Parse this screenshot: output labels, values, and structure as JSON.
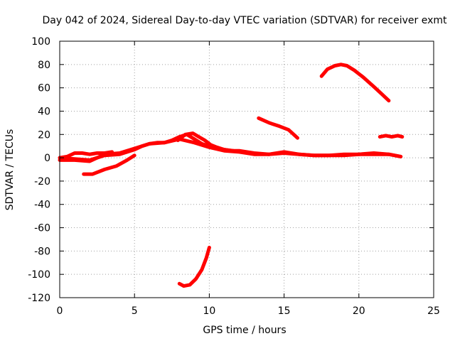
{
  "chart_data": {
    "type": "line",
    "title": "Day 042 of 2024, Sidereal Day-to-day VTEC variation (SDTVAR) for receiver exmt",
    "xlabel": "GPS time / hours",
    "ylabel": "SDTVAR / TECUs",
    "xlim": [
      0,
      25
    ],
    "ylim": [
      -120,
      100
    ],
    "xticks": [
      0,
      5,
      10,
      15,
      20,
      25
    ],
    "yticks": [
      -120,
      -100,
      -80,
      -60,
      -40,
      -20,
      0,
      20,
      40,
      60,
      80,
      100
    ],
    "grid": true,
    "color": "#ff0000",
    "series": [
      {
        "name": "main-band-upper",
        "x": [
          0,
          1,
          2,
          3,
          4,
          5,
          5.5,
          6,
          6.5,
          7,
          7.5,
          8,
          8.5,
          9,
          9.5,
          10,
          10.5,
          11,
          11.5,
          12,
          13,
          14,
          15,
          16,
          17,
          18,
          19,
          20,
          21,
          22,
          22.8
        ],
        "y": [
          0,
          -1,
          -2,
          2,
          3,
          7,
          10,
          12,
          13,
          13,
          15,
          18,
          20,
          16,
          12,
          10,
          8,
          7,
          6,
          6,
          4,
          3,
          4,
          3,
          2,
          2,
          2,
          3,
          3,
          3,
          1
        ]
      },
      {
        "name": "main-band-lower",
        "x": [
          0,
          1,
          2,
          2.5,
          3,
          4,
          5,
          6,
          7,
          8,
          9,
          10,
          11,
          12,
          13,
          14,
          15,
          16,
          17,
          18,
          19,
          20,
          21,
          22,
          22.8
        ],
        "y": [
          -2,
          -2,
          -3,
          0,
          3,
          4,
          8,
          12,
          13,
          16,
          13,
          9,
          6,
          5,
          3,
          3,
          5,
          3,
          2,
          2,
          3,
          3,
          4,
          3,
          1
        ]
      },
      {
        "name": "early-branch",
        "x": [
          0,
          0.5,
          1,
          1.5,
          2,
          2.5,
          3,
          3.5
        ],
        "y": [
          0,
          1,
          4,
          4,
          3,
          4,
          4,
          5
        ]
      },
      {
        "name": "low-branch",
        "x": [
          1.6,
          2.2,
          3,
          3.8,
          4.5,
          5
        ],
        "y": [
          -14,
          -14,
          -10,
          -7,
          -2,
          2
        ]
      },
      {
        "name": "evening-hump",
        "x": [
          7.9,
          8.4,
          8.9,
          9.3,
          9.7,
          10.1,
          10.5,
          11,
          11.6
        ],
        "y": [
          15,
          20,
          21,
          18,
          15,
          11,
          9,
          7,
          6
        ]
      },
      {
        "name": "dip-arc",
        "x": [
          8,
          8.3,
          8.7,
          9.1,
          9.5,
          9.8,
          10
        ],
        "y": [
          -108,
          -110,
          -109,
          -104,
          -96,
          -86,
          -77
        ]
      },
      {
        "name": "mid-arc",
        "x": [
          13.3,
          14,
          14.7,
          15.3,
          15.9
        ],
        "y": [
          34,
          30,
          27,
          24,
          17
        ]
      },
      {
        "name": "high-arc",
        "x": [
          17.5,
          17.9,
          18.4,
          18.8,
          19.2,
          19.7,
          20.3,
          21,
          21.5,
          22
        ],
        "y": [
          70,
          76,
          79,
          80,
          79,
          75,
          69,
          61,
          55,
          49
        ]
      },
      {
        "name": "late-band",
        "x": [
          21.4,
          21.8,
          22.2,
          22.6,
          22.9
        ],
        "y": [
          18,
          19,
          18,
          19,
          18
        ]
      }
    ]
  }
}
